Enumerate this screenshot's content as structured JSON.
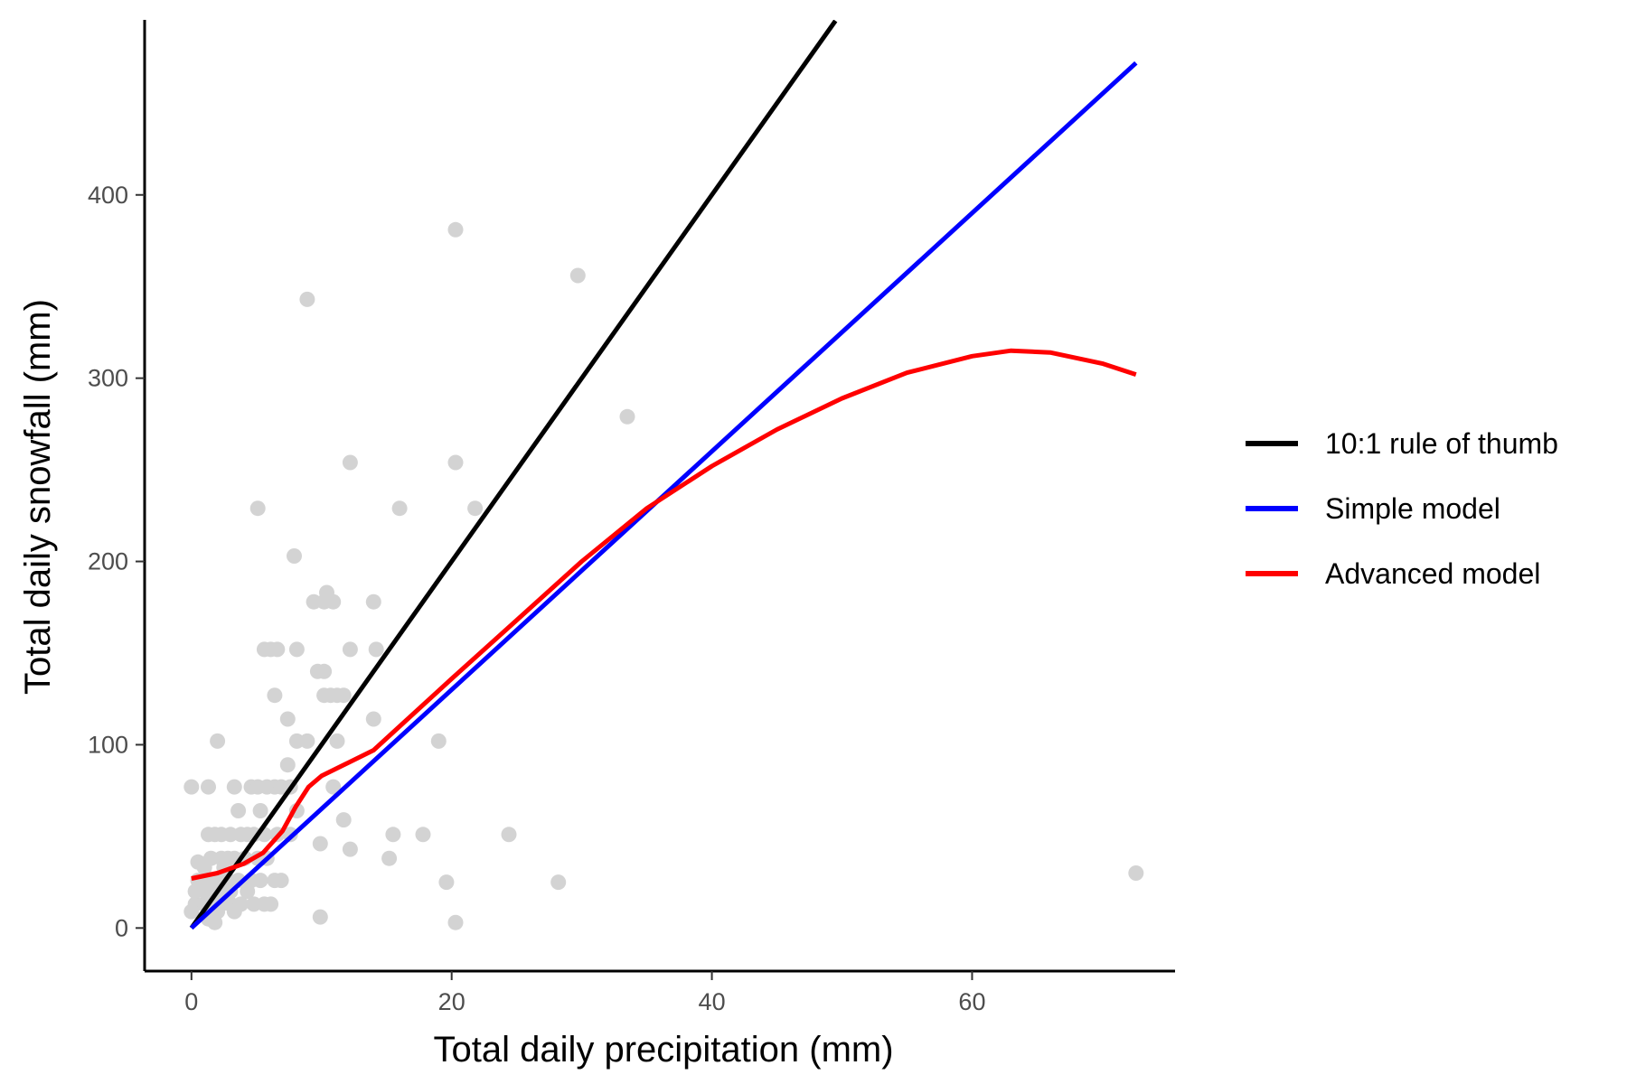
{
  "chart_data": {
    "type": "scatter",
    "title": "",
    "xlabel": "Total daily precipitation (mm)",
    "ylabel": "Total daily snowfall (mm)",
    "xlim": [
      -3.6,
      75.6
    ],
    "ylim": [
      -23.5,
      495.5
    ],
    "xticks": [
      0,
      20,
      40,
      60
    ],
    "yticks": [
      0,
      100,
      200,
      300,
      400
    ],
    "grid": false,
    "legend_position": "right",
    "points_color": "#d3d3d3",
    "points": [
      [
        0.0,
        77
      ],
      [
        0.0,
        9
      ],
      [
        0.3,
        13
      ],
      [
        0.3,
        20
      ],
      [
        0.5,
        26
      ],
      [
        0.5,
        36
      ],
      [
        1.0,
        13
      ],
      [
        1.0,
        20
      ],
      [
        1.0,
        26
      ],
      [
        1.0,
        33
      ],
      [
        1.3,
        51
      ],
      [
        1.3,
        77
      ],
      [
        1.3,
        9
      ],
      [
        1.3,
        5
      ],
      [
        1.5,
        26
      ],
      [
        1.5,
        38
      ],
      [
        1.5,
        13
      ],
      [
        1.8,
        51
      ],
      [
        1.8,
        20
      ],
      [
        1.8,
        3
      ],
      [
        2.0,
        102
      ],
      [
        2.0,
        9
      ],
      [
        2.0,
        26
      ],
      [
        2.3,
        51
      ],
      [
        2.3,
        38
      ],
      [
        2.3,
        13
      ],
      [
        2.5,
        20
      ],
      [
        2.5,
        33
      ],
      [
        2.8,
        26
      ],
      [
        2.8,
        38
      ],
      [
        3.0,
        13
      ],
      [
        3.0,
        51
      ],
      [
        3.0,
        20
      ],
      [
        3.3,
        9
      ],
      [
        3.3,
        77
      ],
      [
        3.3,
        38
      ],
      [
        3.6,
        64
      ],
      [
        3.6,
        26
      ],
      [
        3.8,
        51
      ],
      [
        3.8,
        13
      ],
      [
        4.1,
        38
      ],
      [
        4.3,
        20
      ],
      [
        4.3,
        51
      ],
      [
        4.6,
        26
      ],
      [
        4.6,
        77
      ],
      [
        4.8,
        13
      ],
      [
        4.8,
        51
      ],
      [
        5.1,
        38
      ],
      [
        5.1,
        229
      ],
      [
        5.1,
        77
      ],
      [
        5.3,
        26
      ],
      [
        5.3,
        64
      ],
      [
        5.6,
        152
      ],
      [
        5.6,
        51
      ],
      [
        5.6,
        13
      ],
      [
        5.8,
        38
      ],
      [
        5.8,
        77
      ],
      [
        6.1,
        152
      ],
      [
        6.1,
        13
      ],
      [
        6.4,
        26
      ],
      [
        6.4,
        77
      ],
      [
        6.4,
        127
      ],
      [
        6.6,
        152
      ],
      [
        6.6,
        51
      ],
      [
        6.9,
        26
      ],
      [
        6.9,
        77
      ],
      [
        7.4,
        114
      ],
      [
        7.4,
        89
      ],
      [
        7.6,
        77
      ],
      [
        7.6,
        51
      ],
      [
        7.9,
        203
      ],
      [
        8.1,
        152
      ],
      [
        8.1,
        102
      ],
      [
        8.1,
        64
      ],
      [
        8.9,
        343
      ],
      [
        8.9,
        102
      ],
      [
        9.4,
        178
      ],
      [
        9.7,
        140
      ],
      [
        9.9,
        6
      ],
      [
        9.9,
        46
      ],
      [
        10.2,
        178
      ],
      [
        10.2,
        127
      ],
      [
        10.2,
        140
      ],
      [
        10.4,
        183
      ],
      [
        10.7,
        127
      ],
      [
        10.9,
        178
      ],
      [
        10.9,
        77
      ],
      [
        11.2,
        102
      ],
      [
        11.2,
        127
      ],
      [
        11.7,
        127
      ],
      [
        11.7,
        59
      ],
      [
        12.2,
        254
      ],
      [
        12.2,
        43
      ],
      [
        12.2,
        152
      ],
      [
        14.0,
        178
      ],
      [
        14.0,
        114
      ],
      [
        14.2,
        152
      ],
      [
        15.2,
        38
      ],
      [
        15.5,
        51
      ],
      [
        16.0,
        229
      ],
      [
        17.8,
        51
      ],
      [
        19.0,
        102
      ],
      [
        19.6,
        25
      ],
      [
        20.3,
        381
      ],
      [
        20.3,
        254
      ],
      [
        20.3,
        3
      ],
      [
        21.8,
        229
      ],
      [
        24.4,
        51
      ],
      [
        28.2,
        25
      ],
      [
        29.7,
        356
      ],
      [
        33.5,
        279
      ],
      [
        72.6,
        30
      ]
    ],
    "series": [
      {
        "name": "10:1 rule of thumb",
        "color": "#000000",
        "x": [
          0,
          49.5
        ],
        "y": [
          0,
          495
        ]
      },
      {
        "name": "Simple model",
        "color": "#0000ff",
        "x": [
          0,
          72.6
        ],
        "y": [
          0,
          472
        ]
      },
      {
        "name": "Advanced model",
        "color": "#ff0000",
        "x": [
          0,
          2,
          4,
          5.5,
          7,
          8,
          9,
          10,
          12,
          14,
          16,
          20,
          25,
          30,
          35,
          40,
          45,
          50,
          55,
          60,
          63,
          66,
          70,
          72.6
        ],
        "y": [
          27,
          30,
          35,
          41,
          53,
          66,
          77,
          83,
          90,
          97,
          110,
          136,
          168,
          200,
          229,
          252,
          272,
          289,
          303,
          312,
          315,
          314,
          308,
          302
        ]
      }
    ]
  }
}
